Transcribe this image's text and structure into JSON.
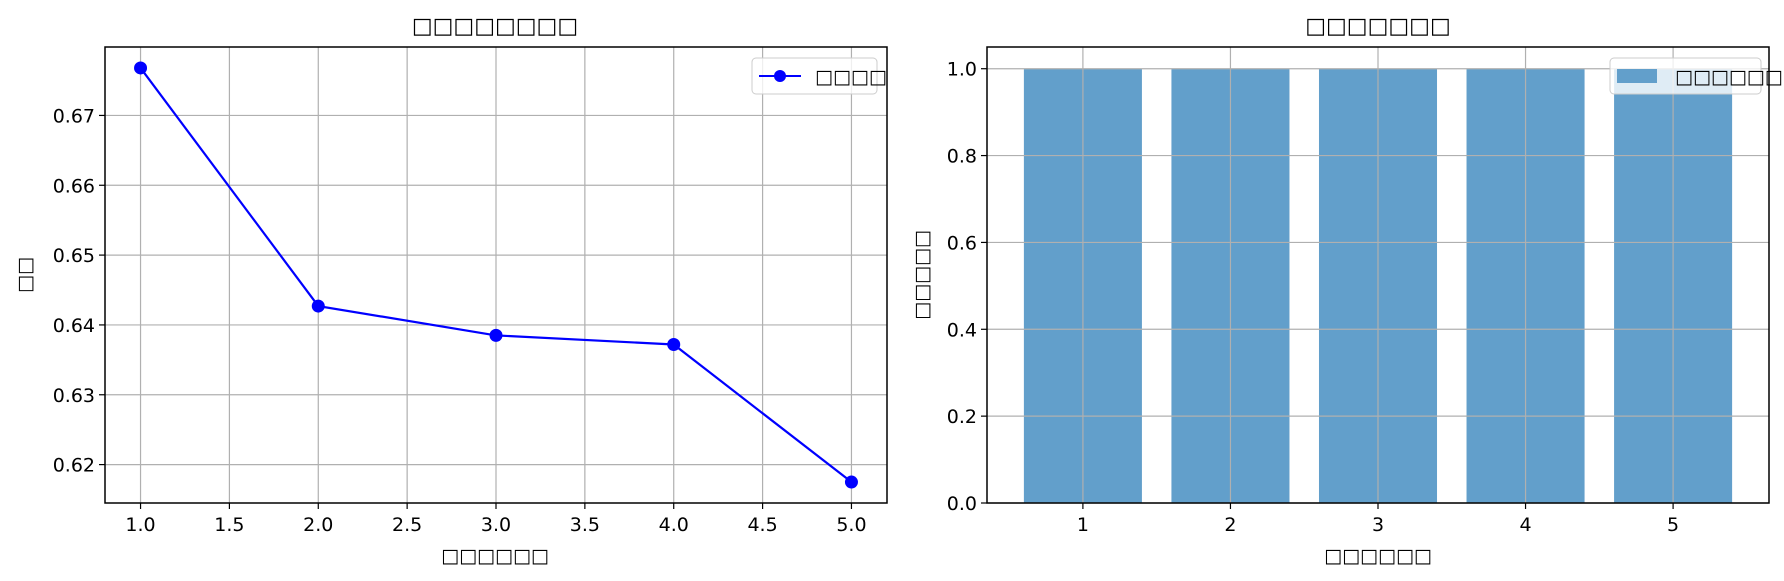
{
  "chart_data": [
    {
      "type": "line",
      "title": "□□□□□□□□",
      "xlabel": "□□□□□□",
      "ylabel": "□□",
      "x": [
        1.0,
        2.0,
        3.0,
        4.0,
        5.0
      ],
      "series": [
        {
          "name": "□□□□",
          "values": [
            0.6768,
            0.6427,
            0.6385,
            0.6372,
            0.6175
          ],
          "color": "#0000ff",
          "marker": "circle"
        }
      ],
      "xlim": [
        0.8,
        5.2
      ],
      "ylim": [
        0.6145,
        0.6798
      ],
      "xticks": [
        1.0,
        1.5,
        2.0,
        2.5,
        3.0,
        3.5,
        4.0,
        4.5,
        5.0
      ],
      "xtick_labels": [
        "1.0",
        "1.5",
        "2.0",
        "2.5",
        "3.0",
        "3.5",
        "4.0",
        "4.5",
        "5.0"
      ],
      "yticks": [
        0.62,
        0.63,
        0.64,
        0.65,
        0.66,
        0.67
      ],
      "ytick_labels": [
        "0.62",
        "0.63",
        "0.64",
        "0.65",
        "0.66",
        "0.67"
      ],
      "grid": true,
      "legend": "upper right"
    },
    {
      "type": "bar",
      "title": "□□□□□□□",
      "xlabel": "□□□□□□",
      "ylabel": "□□□□□",
      "categories": [
        "1",
        "2",
        "3",
        "4",
        "5"
      ],
      "series": [
        {
          "name": "□□□□□□",
          "values": [
            1.0,
            1.0,
            1.0,
            1.0,
            1.0
          ],
          "color": "#629fcb"
        }
      ],
      "xlim": [
        0.35,
        5.65
      ],
      "ylim": [
        0,
        1.05
      ],
      "yticks": [
        0.0,
        0.2,
        0.4,
        0.6,
        0.8,
        1.0
      ],
      "ytick_labels": [
        "0.0",
        "0.2",
        "0.4",
        "0.6",
        "0.8",
        "1.0"
      ],
      "grid": true,
      "legend": "upper right"
    }
  ]
}
